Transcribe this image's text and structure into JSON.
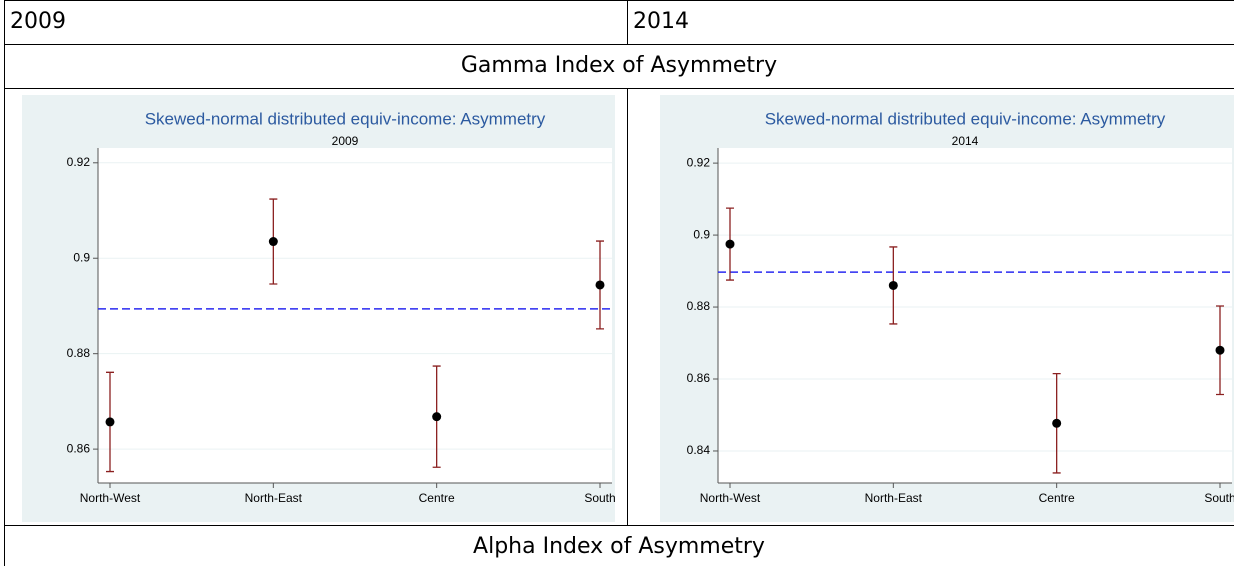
{
  "table": {
    "header": [
      "2009",
      "2014"
    ],
    "rows": [
      "Gamma Index of Asymmetry",
      "Alpha Index of Asymmetry"
    ]
  },
  "chart_data": [
    {
      "type": "errorbar",
      "title": "Skewed-normal distributed equiv-income: Asymmetry",
      "subtitle": "2009",
      "categories": [
        "North-West",
        "North-East",
        "Centre",
        "South"
      ],
      "values": [
        0.8657,
        0.9035,
        0.8668,
        0.8944
      ],
      "errors": [
        0.0104,
        0.0089,
        0.0106,
        0.0092
      ],
      "reference_line": 0.8894,
      "ylim": [
        0.8529,
        0.9231
      ],
      "yticks": [
        0.86,
        0.88,
        0.9,
        0.92
      ],
      "grid": true
    },
    {
      "type": "errorbar",
      "title": "Skewed-normal distributed equiv-income: Asymmetry",
      "subtitle": "2014",
      "categories": [
        "North-West",
        "North-East",
        "Centre",
        "South"
      ],
      "values": [
        0.8975,
        0.886,
        0.8477,
        0.868
      ],
      "errors": [
        0.01,
        0.0107,
        0.0138,
        0.0123
      ],
      "reference_line": 0.8897,
      "ylim": [
        0.8311,
        0.9242
      ],
      "yticks": [
        0.84,
        0.86,
        0.88,
        0.9,
        0.92
      ],
      "grid": true
    }
  ]
}
